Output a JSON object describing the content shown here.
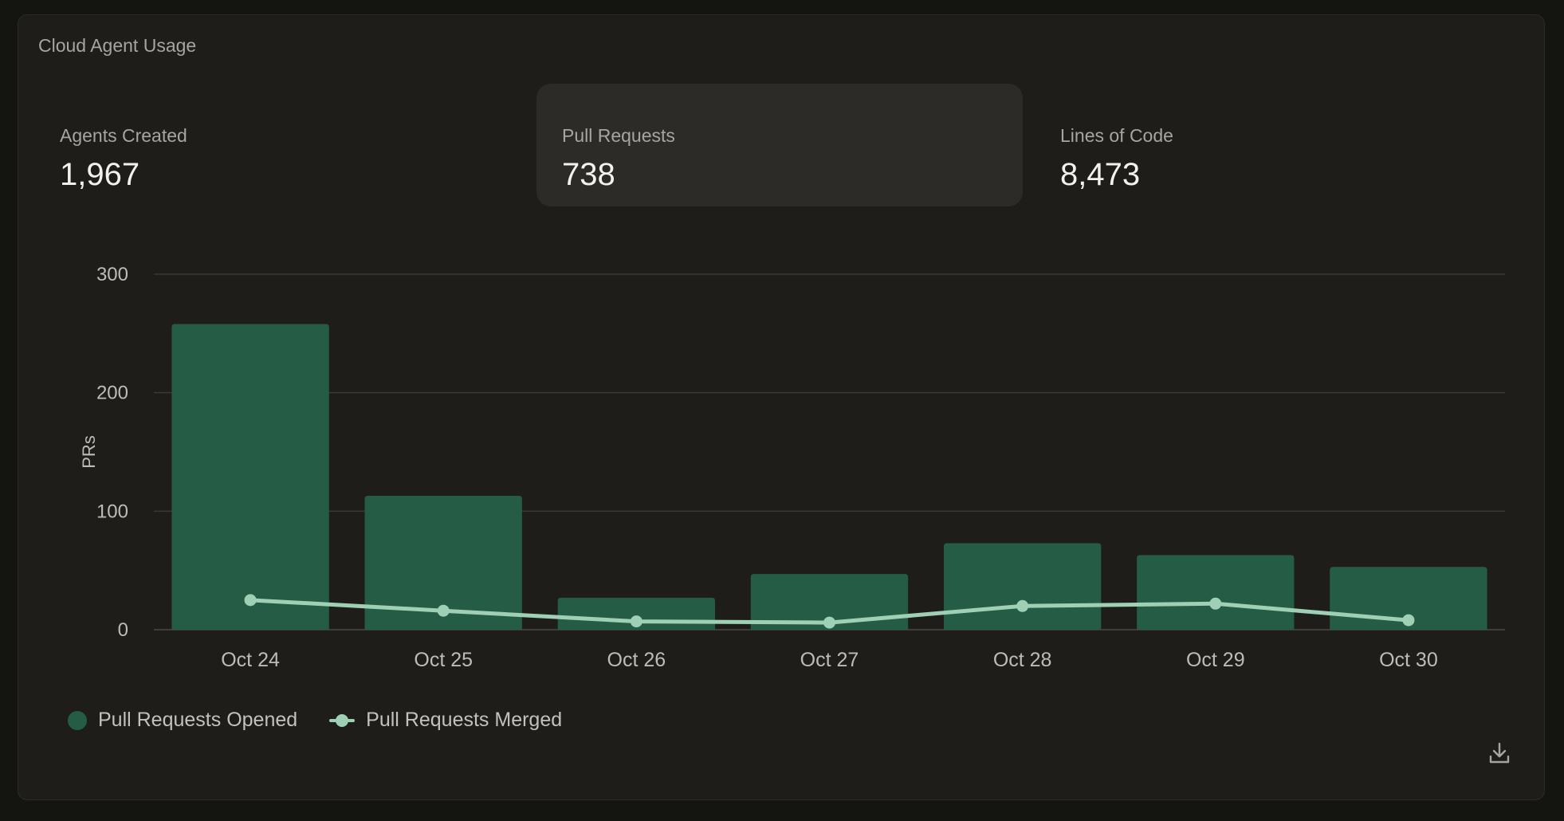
{
  "card": {
    "title": "Cloud Agent Usage"
  },
  "stats": [
    {
      "label": "Agents Created",
      "value": "1,967",
      "active": false
    },
    {
      "label": "Pull Requests",
      "value": "738",
      "active": true
    },
    {
      "label": "Lines of Code",
      "value": "8,473",
      "active": false
    }
  ],
  "colors": {
    "bar": "#255c45",
    "line": "#9fcfb5",
    "grid": "#3a3934",
    "axis_text": "#bdbcb6"
  },
  "icons": {
    "download": "download-icon"
  },
  "chart_data": {
    "type": "bar",
    "categories": [
      "Oct 24",
      "Oct 25",
      "Oct 26",
      "Oct 27",
      "Oct 28",
      "Oct 29",
      "Oct 30"
    ],
    "series": [
      {
        "name": "Pull Requests Opened",
        "type": "bar",
        "values": [
          258,
          113,
          27,
          47,
          73,
          63,
          53
        ]
      },
      {
        "name": "Pull Requests Merged",
        "type": "line",
        "values": [
          25,
          16,
          7,
          6,
          20,
          22,
          8
        ]
      }
    ],
    "yticks": [
      "0",
      "100",
      "200",
      "300"
    ],
    "ylim": [
      0,
      300
    ],
    "ylabel": "PRs",
    "xlabel": "",
    "grid": true,
    "legend": "bottom-left"
  }
}
